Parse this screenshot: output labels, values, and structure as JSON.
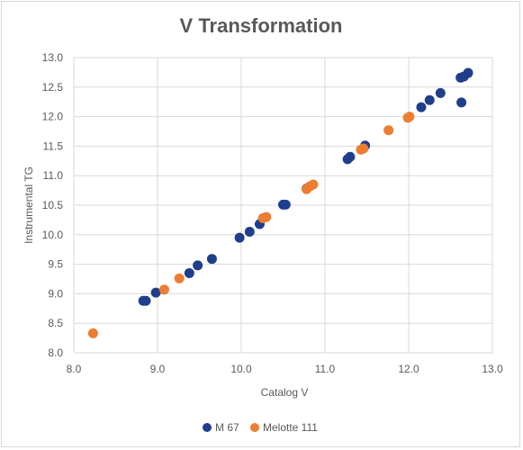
{
  "chart_data": {
    "type": "scatter",
    "title": "V Transformation",
    "xlabel": "Catalog V",
    "ylabel": "Instrumental TG",
    "xlim": [
      8.0,
      13.0
    ],
    "ylim": [
      8.0,
      13.0
    ],
    "x_ticks": [
      "8.0",
      "9.0",
      "10.0",
      "11.0",
      "12.0",
      "13.0"
    ],
    "y_ticks": [
      "8.0",
      "8.5",
      "9.0",
      "9.5",
      "10.0",
      "10.5",
      "11.0",
      "11.5",
      "12.0",
      "12.5",
      "13.0"
    ],
    "grid": true,
    "legend_position": "bottom",
    "series": [
      {
        "name": "M 67",
        "color": "#1f3e8c",
        "points": [
          [
            8.83,
            8.88
          ],
          [
            8.86,
            8.88
          ],
          [
            8.98,
            9.02
          ],
          [
            9.38,
            9.35
          ],
          [
            9.48,
            9.48
          ],
          [
            9.65,
            9.59
          ],
          [
            9.98,
            9.95
          ],
          [
            10.1,
            10.05
          ],
          [
            10.22,
            10.18
          ],
          [
            10.5,
            10.51
          ],
          [
            10.53,
            10.51
          ],
          [
            10.78,
            10.78
          ],
          [
            11.27,
            11.28
          ],
          [
            11.3,
            11.32
          ],
          [
            11.48,
            11.51
          ],
          [
            12.15,
            12.16
          ],
          [
            12.25,
            12.28
          ],
          [
            12.38,
            12.4
          ],
          [
            12.62,
            12.66
          ],
          [
            12.66,
            12.68
          ],
          [
            12.71,
            12.74
          ],
          [
            12.63,
            12.24
          ]
        ]
      },
      {
        "name": "Melotte 111",
        "color": "#ed7d31",
        "points": [
          [
            8.23,
            8.33
          ],
          [
            9.08,
            9.07
          ],
          [
            9.26,
            9.26
          ],
          [
            10.26,
            10.28
          ],
          [
            10.3,
            10.3
          ],
          [
            10.78,
            10.77
          ],
          [
            10.82,
            10.82
          ],
          [
            10.86,
            10.85
          ],
          [
            11.43,
            11.44
          ],
          [
            11.46,
            11.46
          ],
          [
            11.76,
            11.77
          ],
          [
            11.99,
            11.98
          ],
          [
            12.01,
            12.0
          ]
        ]
      }
    ]
  }
}
